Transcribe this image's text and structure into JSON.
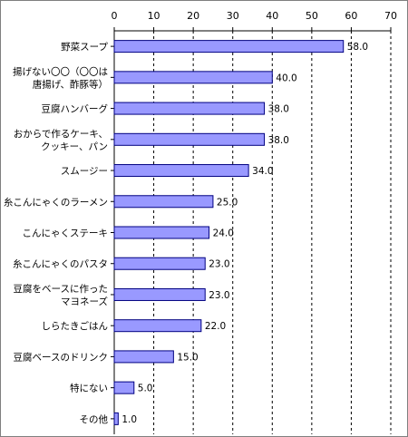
{
  "chart_data": {
    "type": "bar",
    "orientation": "horizontal",
    "categories": [
      [
        "野菜スープ"
      ],
      [
        "揚げない〇〇（〇〇は",
        "唐揚げ、酢豚等）"
      ],
      [
        "豆腐ハンバーグ"
      ],
      [
        "おからで作るケーキ、",
        "クッキー、パン"
      ],
      [
        "スムージー"
      ],
      [
        "糸こんにゃくのラーメン"
      ],
      [
        "こんにゃくステーキ"
      ],
      [
        "糸こんにゃくのパスタ"
      ],
      [
        "豆腐をベースに作った",
        "マヨネーズ"
      ],
      [
        "しらたきごはん"
      ],
      [
        "豆腐ベースのドリンク"
      ],
      [
        "特にない"
      ],
      [
        "その他"
      ]
    ],
    "values": [
      58.0,
      40.0,
      38.0,
      38.0,
      34.0,
      25.0,
      24.0,
      23.0,
      23.0,
      22.0,
      15.0,
      5.0,
      1.0
    ],
    "value_labels": [
      "58.0",
      "40.0",
      "38.0",
      "38.0",
      "34.0",
      "25.0",
      "24.0",
      "23.0",
      "23.0",
      "22.0",
      "15.0",
      "5.0",
      "1.0"
    ],
    "xlim": [
      0,
      70
    ],
    "xticks": [
      "0",
      "10",
      "20",
      "30",
      "40",
      "50",
      "60",
      "70"
    ],
    "grid": true,
    "gridStyle": "dashed-vertical",
    "colors": {
      "bar_fill": "#9999ff",
      "bar_stroke": "#000080",
      "axis": "#000000",
      "grid": "#000000",
      "frame": "#7f7f7f"
    }
  }
}
